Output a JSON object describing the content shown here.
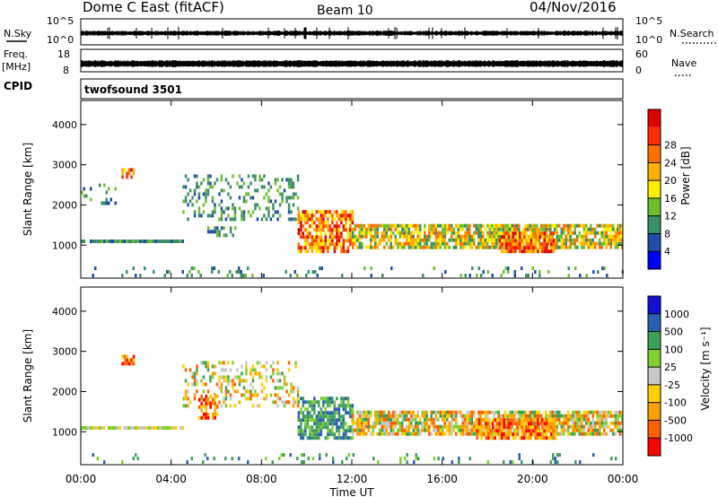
{
  "header": {
    "station": "Dome C East (fitACF)",
    "beam": "Beam 10",
    "date": "04/Nov/2016"
  },
  "panels": {
    "nsky_label": "N.Sky",
    "nsearch_label": "N.Search",
    "nsky_ticks": [
      "10^5",
      "10^0"
    ],
    "nsearch_ticks": [
      "10^5",
      "10^0"
    ],
    "freq_label": "Freq.",
    "freq_unit": "[MHz]",
    "freq_ticks": [
      "18",
      "8"
    ],
    "nave_label": "Nave",
    "nave_ticks": [
      "60",
      "0"
    ],
    "cpid_label": "CPID",
    "cpid_value": "twofsound 3501"
  },
  "colors": {
    "power": [
      "#0000ff",
      "#1f4ea8",
      "#3a8f66",
      "#6fbf2d",
      "#ffee00",
      "#ffb000",
      "#ff7000",
      "#ff3000",
      "#e00000"
    ],
    "velocity": [
      "#ff0000",
      "#ff6000",
      "#ffa000",
      "#ffd000",
      "#c8c8c8",
      "#7fd030",
      "#3ca05a",
      "#2b5fb0",
      "#1010d0"
    ]
  },
  "chart_data": [
    {
      "type": "heatmap",
      "name": "power",
      "ylabel": "Slant Range [km]",
      "xlabel": "Time UT",
      "x_ticks": [
        "00:00",
        "04:00",
        "08:00",
        "12:00",
        "16:00",
        "20:00",
        "00:00"
      ],
      "y_ticks": [
        "1000",
        "2000",
        "3000",
        "4000"
      ],
      "xlim": [
        0,
        24
      ],
      "ylim": [
        180,
        4600
      ],
      "colorbar_label": "Power [dB]",
      "colorbar_ticks": [
        "4",
        "8",
        "12",
        "16",
        "20",
        "24",
        "28"
      ],
      "regions": [
        {
          "t0": 0.0,
          "t1": 4.5,
          "r0": 1050,
          "r1": 1130,
          "level": "low",
          "density": 0.9
        },
        {
          "t0": 1.8,
          "t1": 2.3,
          "r0": 2650,
          "r1": 2850,
          "level": "high",
          "density": 0.8
        },
        {
          "t0": 0.0,
          "t1": 1.5,
          "r0": 2000,
          "r1": 2500,
          "level": "low",
          "density": 0.15
        },
        {
          "t0": 4.5,
          "t1": 9.6,
          "r0": 1600,
          "r1": 2700,
          "level": "low",
          "density": 0.3
        },
        {
          "t0": 5.5,
          "t1": 6.8,
          "r0": 1200,
          "r1": 1400,
          "level": "low",
          "density": 0.5
        },
        {
          "t0": 9.6,
          "t1": 12.0,
          "r0": 800,
          "r1": 1800,
          "level": "high",
          "density": 0.75
        },
        {
          "t0": 12.0,
          "t1": 24.0,
          "r0": 900,
          "r1": 1450,
          "level": "mid",
          "density": 0.8
        },
        {
          "t0": 18.5,
          "t1": 21.0,
          "r0": 800,
          "r1": 1300,
          "level": "high",
          "density": 0.9
        },
        {
          "t0": 0.0,
          "t1": 24.0,
          "r0": 200,
          "r1": 420,
          "level": "low",
          "density": 0.12
        }
      ]
    },
    {
      "type": "heatmap",
      "name": "velocity",
      "ylabel": "Slant Range [km]",
      "xlabel": "Time UT",
      "x_ticks": [
        "00:00",
        "04:00",
        "08:00",
        "12:00",
        "16:00",
        "20:00",
        "00:00"
      ],
      "y_ticks": [
        "1000",
        "2000",
        "3000",
        "4000"
      ],
      "xlim": [
        0,
        24
      ],
      "ylim": [
        180,
        4600
      ],
      "colorbar_label": "Velocity [m s⁻¹]",
      "colorbar_ticks": [
        "1000",
        "500",
        "100",
        "25",
        "-25",
        "-100",
        "-500",
        "-1000"
      ],
      "regions": [
        {
          "t0": 0.0,
          "t1": 4.5,
          "r0": 1050,
          "r1": 1130,
          "level": "zero",
          "density": 0.9
        },
        {
          "t0": 1.8,
          "t1": 2.3,
          "r0": 2650,
          "r1": 2850,
          "level": "neg",
          "density": 0.8
        },
        {
          "t0": 4.5,
          "t1": 9.6,
          "r0": 1600,
          "r1": 2700,
          "level": "mixed",
          "density": 0.3
        },
        {
          "t0": 5.2,
          "t1": 6.0,
          "r0": 1300,
          "r1": 1900,
          "level": "neg",
          "density": 0.6
        },
        {
          "t0": 9.6,
          "t1": 12.0,
          "r0": 800,
          "r1": 1800,
          "level": "pos",
          "density": 0.75
        },
        {
          "t0": 12.0,
          "t1": 24.0,
          "r0": 900,
          "r1": 1450,
          "level": "mixed",
          "density": 0.8
        },
        {
          "t0": 17.5,
          "t1": 21.0,
          "r0": 800,
          "r1": 1300,
          "level": "neg",
          "density": 0.85
        },
        {
          "t0": 0.0,
          "t1": 24.0,
          "r0": 200,
          "r1": 420,
          "level": "pos",
          "density": 0.12
        }
      ]
    }
  ]
}
